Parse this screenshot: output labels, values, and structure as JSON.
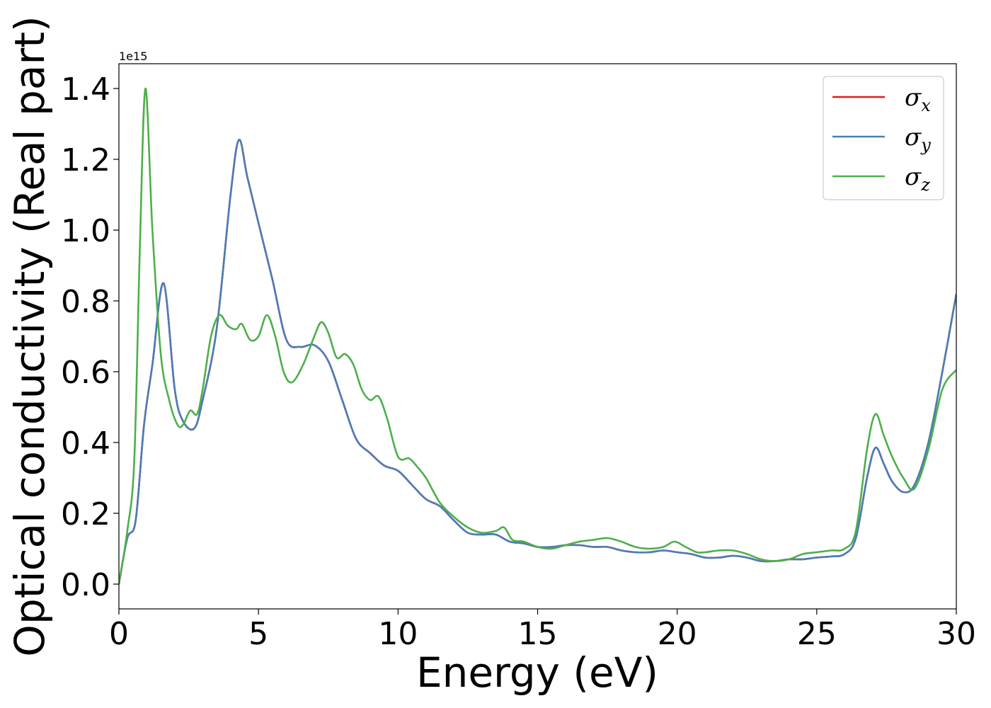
{
  "chart_data": {
    "type": "line",
    "xlabel": "Energy (eV)",
    "ylabel": "Optical conductivity (Real part)",
    "y_offset_label": "1e15",
    "xlim": [
      0,
      30
    ],
    "ylim": [
      -0.07,
      1.47
    ],
    "x_ticks": [
      0,
      5,
      10,
      15,
      20,
      25,
      30
    ],
    "x_tick_labels": [
      "0",
      "5",
      "10",
      "15",
      "20",
      "25",
      "30"
    ],
    "y_ticks": [
      0.0,
      0.2,
      0.4,
      0.6,
      0.8,
      1.0,
      1.2,
      1.4
    ],
    "y_tick_labels": [
      "0.0",
      "0.2",
      "0.4",
      "0.6",
      "0.8",
      "1.0",
      "1.2",
      "1.4"
    ],
    "grid": false,
    "legend_position": "top-right",
    "series": [
      {
        "name": "σx",
        "legend_symbol": "σ",
        "legend_subscript": "x",
        "color": "#e41a1c",
        "x": [
          0,
          0.3,
          0.6,
          0.9,
          1.2,
          1.6,
          2.0,
          2.3,
          2.7,
          3.0,
          3.5,
          4.0,
          4.3,
          4.6,
          5.0,
          5.5,
          6.0,
          6.5,
          7.0,
          7.5,
          8.0,
          8.5,
          9.0,
          9.5,
          10.0,
          10.5,
          11.0,
          11.5,
          12.0,
          12.5,
          13.0,
          13.5,
          14.0,
          14.5,
          15.0,
          15.5,
          16.0,
          16.5,
          17.0,
          17.5,
          18.0,
          18.5,
          19.0,
          19.5,
          20.0,
          20.5,
          21.0,
          21.5,
          22.0,
          22.5,
          23.0,
          23.5,
          24.0,
          24.5,
          25.0,
          25.5,
          26.0,
          26.4,
          26.8,
          27.1,
          27.4,
          27.7,
          28.1,
          28.5,
          29.0,
          29.5,
          30.0
        ],
        "y": [
          0.0,
          0.13,
          0.18,
          0.45,
          0.62,
          0.85,
          0.55,
          0.46,
          0.44,
          0.52,
          0.72,
          1.1,
          1.255,
          1.15,
          1.02,
          0.86,
          0.69,
          0.67,
          0.675,
          0.63,
          0.52,
          0.41,
          0.37,
          0.335,
          0.32,
          0.28,
          0.24,
          0.22,
          0.18,
          0.145,
          0.14,
          0.14,
          0.12,
          0.115,
          0.105,
          0.105,
          0.11,
          0.11,
          0.105,
          0.105,
          0.095,
          0.09,
          0.09,
          0.095,
          0.09,
          0.085,
          0.075,
          0.075,
          0.08,
          0.075,
          0.065,
          0.065,
          0.07,
          0.07,
          0.075,
          0.078,
          0.085,
          0.13,
          0.3,
          0.385,
          0.34,
          0.29,
          0.26,
          0.28,
          0.4,
          0.6,
          0.82
        ]
      },
      {
        "name": "σy",
        "legend_symbol": "σ",
        "legend_subscript": "y",
        "color": "#4a7db8",
        "x": [
          0,
          0.3,
          0.6,
          0.9,
          1.2,
          1.6,
          2.0,
          2.3,
          2.7,
          3.0,
          3.5,
          4.0,
          4.3,
          4.6,
          5.0,
          5.5,
          6.0,
          6.5,
          7.0,
          7.5,
          8.0,
          8.5,
          9.0,
          9.5,
          10.0,
          10.5,
          11.0,
          11.5,
          12.0,
          12.5,
          13.0,
          13.5,
          14.0,
          14.5,
          15.0,
          15.5,
          16.0,
          16.5,
          17.0,
          17.5,
          18.0,
          18.5,
          19.0,
          19.5,
          20.0,
          20.5,
          21.0,
          21.5,
          22.0,
          22.5,
          23.0,
          23.5,
          24.0,
          24.5,
          25.0,
          25.5,
          26.0,
          26.4,
          26.8,
          27.1,
          27.4,
          27.7,
          28.1,
          28.5,
          29.0,
          29.5,
          30.0
        ],
        "y": [
          0.0,
          0.13,
          0.18,
          0.45,
          0.62,
          0.85,
          0.55,
          0.46,
          0.44,
          0.52,
          0.72,
          1.1,
          1.255,
          1.15,
          1.02,
          0.86,
          0.69,
          0.67,
          0.675,
          0.63,
          0.52,
          0.41,
          0.37,
          0.335,
          0.32,
          0.28,
          0.24,
          0.22,
          0.18,
          0.145,
          0.14,
          0.14,
          0.12,
          0.115,
          0.105,
          0.105,
          0.11,
          0.11,
          0.105,
          0.105,
          0.095,
          0.09,
          0.09,
          0.095,
          0.09,
          0.085,
          0.075,
          0.075,
          0.08,
          0.075,
          0.065,
          0.065,
          0.07,
          0.07,
          0.075,
          0.078,
          0.085,
          0.13,
          0.3,
          0.385,
          0.34,
          0.29,
          0.26,
          0.28,
          0.4,
          0.6,
          0.82
        ]
      },
      {
        "name": "σz",
        "legend_symbol": "σ",
        "legend_subscript": "z",
        "color": "#4daf4a",
        "x": [
          0,
          0.3,
          0.55,
          0.75,
          0.95,
          1.2,
          1.5,
          1.8,
          2.1,
          2.3,
          2.55,
          2.8,
          3.0,
          3.3,
          3.6,
          3.9,
          4.2,
          4.4,
          4.7,
          5.0,
          5.3,
          5.6,
          5.9,
          6.2,
          6.6,
          7.0,
          7.25,
          7.5,
          7.8,
          8.1,
          8.4,
          8.7,
          9.0,
          9.3,
          9.6,
          10.0,
          10.4,
          10.7,
          11.0,
          11.5,
          12.0,
          12.5,
          13.0,
          13.5,
          13.8,
          14.1,
          14.5,
          15.0,
          15.5,
          16.0,
          16.5,
          17.0,
          17.5,
          18.0,
          18.5,
          19.0,
          19.5,
          19.9,
          20.3,
          20.7,
          21.0,
          21.5,
          22.0,
          22.5,
          23.0,
          23.5,
          24.0,
          24.5,
          25.0,
          25.5,
          26.0,
          26.4,
          26.8,
          27.1,
          27.4,
          27.7,
          28.1,
          28.5,
          29.0,
          29.5,
          30.0
        ],
        "y": [
          0.0,
          0.15,
          0.35,
          0.95,
          1.4,
          1.0,
          0.65,
          0.52,
          0.45,
          0.45,
          0.49,
          0.48,
          0.55,
          0.7,
          0.76,
          0.73,
          0.72,
          0.735,
          0.69,
          0.7,
          0.76,
          0.7,
          0.6,
          0.57,
          0.62,
          0.7,
          0.74,
          0.71,
          0.64,
          0.65,
          0.62,
          0.55,
          0.52,
          0.53,
          0.47,
          0.36,
          0.355,
          0.33,
          0.3,
          0.23,
          0.19,
          0.16,
          0.145,
          0.15,
          0.16,
          0.125,
          0.12,
          0.105,
          0.1,
          0.11,
          0.12,
          0.125,
          0.13,
          0.12,
          0.105,
          0.1,
          0.105,
          0.12,
          0.105,
          0.09,
          0.09,
          0.095,
          0.095,
          0.085,
          0.07,
          0.065,
          0.07,
          0.085,
          0.09,
          0.095,
          0.1,
          0.15,
          0.38,
          0.48,
          0.42,
          0.36,
          0.3,
          0.27,
          0.38,
          0.55,
          0.605
        ]
      }
    ]
  }
}
